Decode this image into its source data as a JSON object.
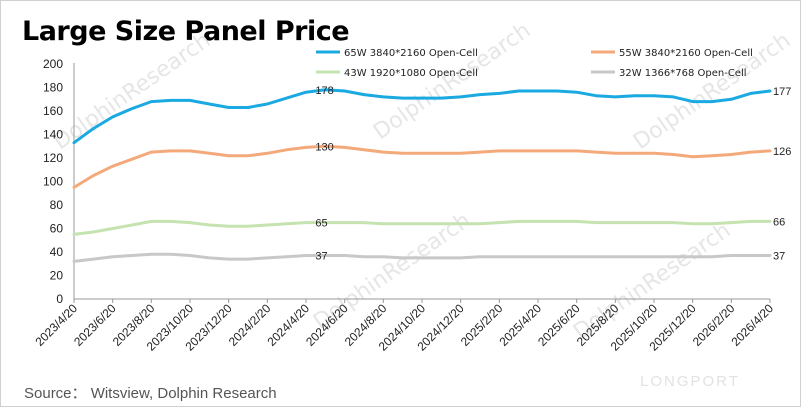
{
  "title": "Large Size Panel Price",
  "source": "Source： Witsview, Dolphin Research",
  "watermark": "DolphinResearch",
  "brand": "LONGPORT",
  "chart_data": {
    "type": "line",
    "xlabel": "",
    "ylabel": "",
    "ylim": [
      0,
      200
    ],
    "yticks": [
      0,
      20,
      40,
      60,
      80,
      100,
      120,
      140,
      160,
      180,
      200
    ],
    "grid": false,
    "legend_position": "top",
    "x": [
      "2023/4/20",
      "2023/5/20",
      "2023/6/20",
      "2023/7/20",
      "2023/8/20",
      "2023/9/20",
      "2023/10/20",
      "2023/11/20",
      "2023/12/20",
      "2024/1/20",
      "2024/2/20",
      "2024/3/20",
      "2024/4/20",
      "2024/5/20",
      "2024/6/20",
      "2024/7/20",
      "2024/8/20",
      "2024/9/20",
      "2024/10/20",
      "2024/11/20",
      "2024/12/20",
      "2025/1/20",
      "2025/2/20",
      "2025/3/20",
      "2025/4/20",
      "2025/5/20",
      "2025/6/20",
      "2025/7/20",
      "2025/8/20",
      "2025/9/20",
      "2025/10/20",
      "2025/11/20",
      "2025/12/20",
      "2026/1/20",
      "2026/2/20",
      "2026/3/20",
      "2026/4/20"
    ],
    "xtick_labels": [
      "2023/4/20",
      "2023/6/20",
      "2023/8/20",
      "2023/10/20",
      "2023/12/20",
      "2024/2/20",
      "2024/4/20",
      "2024/6/20",
      "2024/8/20",
      "2024/10/20",
      "2024/12/20",
      "2025/2/20",
      "2025/4/20",
      "2025/6/20",
      "2025/8/20",
      "2025/10/20",
      "2025/12/20",
      "2026/2/20",
      "2026/4/20"
    ],
    "series": [
      {
        "name": "65W 3840*2160 Open-Cell",
        "color": "#1aa9e0",
        "values": [
          133,
          145,
          155,
          162,
          168,
          169,
          169,
          166,
          163,
          163,
          166,
          171,
          176,
          178,
          177,
          174,
          172,
          171,
          171,
          171,
          172,
          174,
          175,
          177,
          177,
          177,
          176,
          173,
          172,
          173,
          173,
          172,
          168,
          168,
          170,
          175,
          177
        ],
        "label_index": [
          13,
          36
        ],
        "labels": [
          "178",
          "177"
        ]
      },
      {
        "name": "55W 3840*2160 Open-Cell",
        "color": "#f4a97b",
        "values": [
          95,
          105,
          113,
          119,
          125,
          126,
          126,
          124,
          122,
          122,
          124,
          127,
          129,
          130,
          129,
          127,
          125,
          124,
          124,
          124,
          124,
          125,
          126,
          126,
          126,
          126,
          126,
          125,
          124,
          124,
          124,
          123,
          121,
          122,
          123,
          125,
          126
        ],
        "label_index": [
          13,
          36
        ],
        "labels": [
          "130",
          "126"
        ]
      },
      {
        "name": "43W 1920*1080 Open-Cell",
        "color": "#c5e3b0",
        "values": [
          55,
          57,
          60,
          63,
          66,
          66,
          65,
          63,
          62,
          62,
          63,
          64,
          65,
          65,
          65,
          65,
          64,
          64,
          64,
          64,
          64,
          64,
          65,
          66,
          66,
          66,
          66,
          65,
          65,
          65,
          65,
          65,
          64,
          64,
          65,
          66,
          66
        ],
        "label_index": [
          13,
          36
        ],
        "labels": [
          "65",
          "66"
        ]
      },
      {
        "name": "32W 1366*768 Open-Cell",
        "color": "#c8c8c8",
        "values": [
          32,
          34,
          36,
          37,
          38,
          38,
          37,
          35,
          34,
          34,
          35,
          36,
          37,
          37,
          37,
          36,
          36,
          35,
          35,
          35,
          35,
          36,
          36,
          36,
          36,
          36,
          36,
          36,
          36,
          36,
          36,
          36,
          36,
          36,
          37,
          37,
          37
        ],
        "label_index": [
          13,
          36
        ],
        "labels": [
          "37",
          "37"
        ]
      }
    ]
  }
}
